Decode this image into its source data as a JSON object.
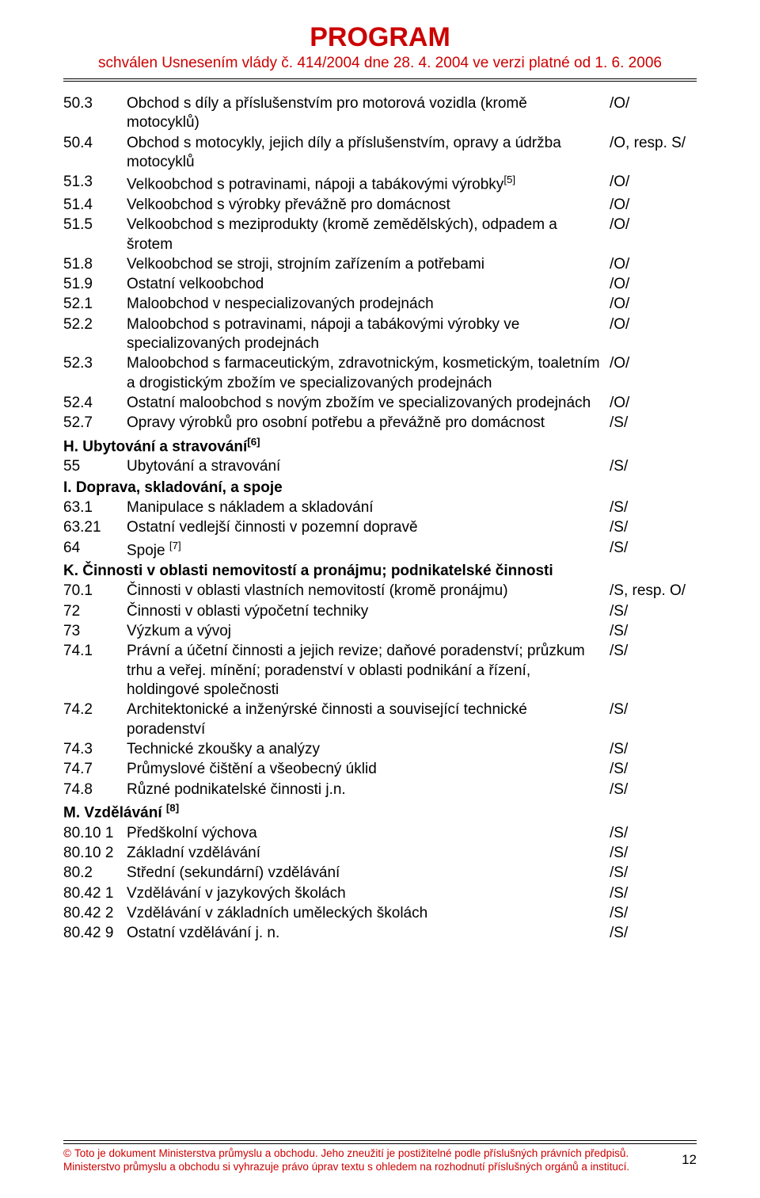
{
  "header": {
    "title": "PROGRAM",
    "subtitle": "schválen Usnesením vlády č. 414/2004 dne 28. 4. 2004 ve verzi platné od 1. 6. 2006"
  },
  "rows": [
    {
      "code": "50.3",
      "desc": "Obchod s díly a příslušenstvím pro motorová vozidla (kromě motocyklů)",
      "tag": "/O/"
    },
    {
      "code": "50.4",
      "desc": "Obchod s motocykly, jejich díly a příslušenstvím, opravy a údržba motocyklů",
      "tag": "/O, resp. S/"
    },
    {
      "code": "51.3",
      "desc": "Velkoobchod s potravinami, nápoji a tabákovými výrobky",
      "sup": "[5]",
      "tag": "/O/"
    },
    {
      "code": "51.4",
      "desc": "Velkoobchod s výrobky převážně pro domácnost",
      "tag": "/O/"
    },
    {
      "code": "51.5",
      "desc": "Velkoobchod s meziprodukty (kromě zemědělských), odpadem a šrotem",
      "tag": "/O/"
    },
    {
      "code": "51.8",
      "desc": "Velkoobchod se stroji, strojním zařízením a potřebami",
      "tag": "/O/"
    },
    {
      "code": "51.9",
      "desc": "Ostatní velkoobchod",
      "tag": "/O/"
    },
    {
      "code": "52.1",
      "desc": "Maloobchod v nespecializovaných prodejnách",
      "tag": "/O/"
    },
    {
      "code": "52.2",
      "desc": "Maloobchod s potravinami, nápoji a tabákovými výrobky ve specializovaných prodejnách",
      "tag": "/O/"
    },
    {
      "code": "52.3",
      "desc": "Maloobchod s farmaceutickým, zdravotnickým, kosmetickým, toaletním a drogistickým zbožím ve specializovaných prodejnách",
      "tag": "/O/"
    },
    {
      "code": "52.4",
      "desc": "Ostatní maloobchod s novým zbožím ve specializovaných prodejnách",
      "tag": "/O/"
    },
    {
      "code": "52.7",
      "desc": "Opravy výrobků pro osobní potřebu a převážně pro domácnost",
      "tag": "/S/"
    },
    {
      "heading": "H. Ubytování a stravování",
      "sup": "[6]"
    },
    {
      "code": "55",
      "desc": "Ubytování a stravování",
      "tag": "/S/"
    },
    {
      "heading": "I. Doprava, skladování, a spoje"
    },
    {
      "code": "63.1",
      "desc": "Manipulace s nákladem a skladování",
      "tag": "/S/"
    },
    {
      "code": "63.21",
      "desc": "Ostatní vedlejší činnosti v pozemní dopravě",
      "tag": "/S/"
    },
    {
      "code": "64",
      "desc": "Spoje ",
      "sup": "[7]",
      "tag": "/S/"
    },
    {
      "heading": "K. Činnosti v oblasti nemovitostí a pronájmu; podnikatelské činnosti"
    },
    {
      "code": "70.1",
      "desc": "Činnosti v oblasti vlastních nemovitostí (kromě pronájmu)",
      "tag": "/S, resp. O/"
    },
    {
      "code": "72",
      "desc": "Činnosti v oblasti výpočetní techniky",
      "tag": "/S/"
    },
    {
      "code": "73",
      "desc": "Výzkum a vývoj",
      "tag": "/S/"
    },
    {
      "code": "74.1",
      "desc": "Právní a účetní činnosti a jejich revize; daňové poradenství; průzkum trhu a veřej. mínění; poradenství v oblasti podnikání a řízení, holdingové společnosti",
      "tag": "/S/"
    },
    {
      "code": "74.2",
      "desc": "Architektonické a inženýrské činnosti a související technické poradenství",
      "tag": "/S/"
    },
    {
      "code": "74.3",
      "desc": "Technické zkoušky a analýzy",
      "tag": "/S/"
    },
    {
      "code": "74.7",
      "desc": "Průmyslové čištění a všeobecný úklid",
      "tag": "/S/"
    },
    {
      "code": "74.8",
      "desc": "Různé podnikatelské činnosti j.n.",
      "tag": "/S/"
    },
    {
      "heading": "M. Vzdělávání ",
      "sup": "[8]"
    },
    {
      "code": "80.10 1",
      "desc": "Předškolní výchova",
      "tag": "/S/"
    },
    {
      "code": "80.10 2",
      "desc": "Základní vzdělávání",
      "tag": "/S/"
    },
    {
      "code": "80.2",
      "desc": "Střední (sekundární) vzdělávání",
      "tag": "/S/"
    },
    {
      "code": "80.42 1",
      "desc": "Vzdělávání v jazykových školách",
      "tag": "/S/"
    },
    {
      "code": "80.42 2",
      "desc": "Vzdělávání v základních uměleckých školách",
      "tag": "/S/"
    },
    {
      "code": "80.42 9",
      "desc": "Ostatní vzdělávání j. n.",
      "tag": "/S/"
    }
  ],
  "footer": {
    "line1": "Toto je dokument Ministerstva průmyslu a obchodu. Jeho zneužití je postižitelné podle příslušných právních předpisů.",
    "line2": "Ministerstvo průmyslu a obchodu si vyhrazuje právo úprav textu s ohledem na rozhodnutí příslušných orgánů a institucí.",
    "page": "12",
    "copyright": "©"
  }
}
